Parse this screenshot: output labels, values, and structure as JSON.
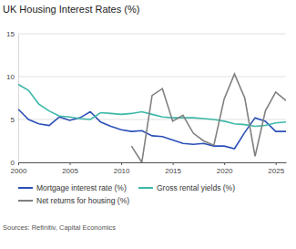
{
  "chart_data": {
    "type": "line",
    "title": "UK Housing Interest Rates (%)",
    "source": "Sources: Refinitiv, Capital Economics",
    "x": [
      2000,
      2001,
      2002,
      2003,
      2004,
      2005,
      2006,
      2007,
      2008,
      2009,
      2010,
      2011,
      2012,
      2013,
      2014,
      2015,
      2016,
      2017,
      2018,
      2019,
      2020,
      2021,
      2022,
      2023,
      2024,
      2025,
      2026
    ],
    "series": [
      {
        "name": "Mortgage interest rate (%)",
        "color": "#2b4fb8",
        "values": [
          6.2,
          5.0,
          4.5,
          4.3,
          5.3,
          4.9,
          5.2,
          5.9,
          4.7,
          4.2,
          3.8,
          3.6,
          3.7,
          3.1,
          3.0,
          2.6,
          2.2,
          2.1,
          2.2,
          1.9,
          1.9,
          1.6,
          3.5,
          5.2,
          4.8,
          3.6,
          3.6
        ]
      },
      {
        "name": "Gross rental yields (%)",
        "color": "#3cb8a8",
        "values": [
          9.1,
          8.4,
          6.8,
          6.0,
          5.4,
          5.3,
          5.1,
          5.0,
          5.8,
          5.7,
          5.6,
          5.7,
          5.9,
          5.6,
          5.3,
          5.2,
          5.2,
          5.2,
          5.1,
          5.0,
          4.8,
          4.5,
          4.4,
          4.2,
          4.3,
          4.6,
          4.7
        ]
      },
      {
        "name": "Net returns for housing (%)",
        "color": "#808080",
        "values": [
          null,
          null,
          null,
          null,
          null,
          null,
          null,
          null,
          null,
          null,
          null,
          1.9,
          0.0,
          7.8,
          8.6,
          4.8,
          5.5,
          3.4,
          2.5,
          2.0,
          7.4,
          10.3,
          7.5,
          0.7,
          6.0,
          8.2,
          7.2
        ]
      }
    ],
    "xlim": [
      2000,
      2026
    ],
    "xticks": [
      2000,
      2005,
      2010,
      2015,
      2020,
      2025
    ],
    "ylim": [
      0,
      15
    ],
    "yticks": [
      0,
      5,
      10,
      15
    ],
    "grid": true,
    "legend": "bottom"
  }
}
